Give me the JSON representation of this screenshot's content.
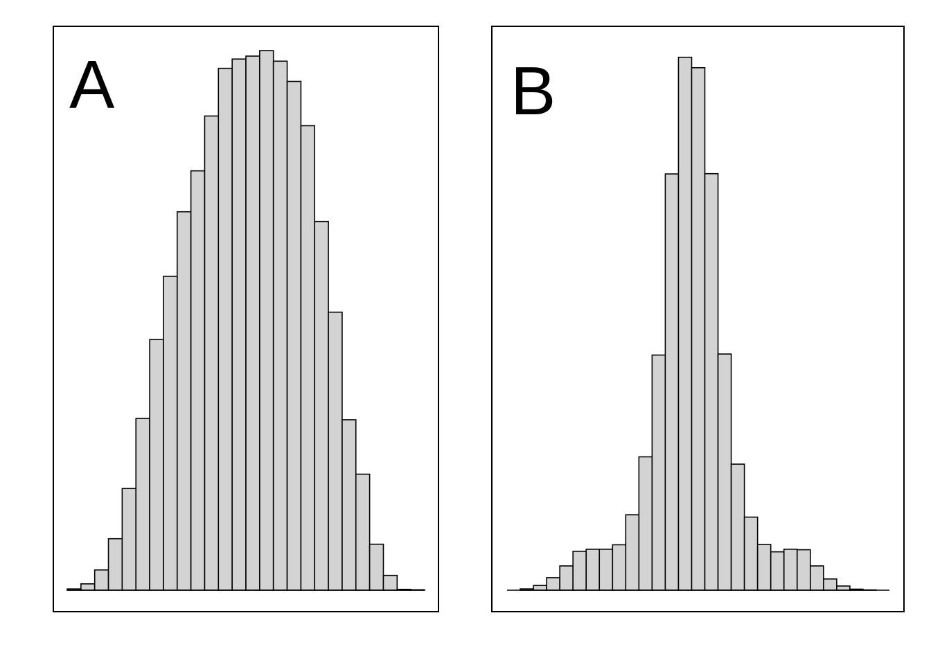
{
  "style": {
    "bar_fill": "#d3d3d3",
    "bar_stroke": "#000000",
    "background": "#ffffff"
  },
  "chart_data": [
    {
      "type": "bar",
      "panel_label": "A",
      "grid": false,
      "axes_shown": false,
      "values": [
        0.003,
        0.015,
        0.048,
        0.122,
        0.241,
        0.407,
        0.594,
        0.744,
        0.897,
        0.994,
        1.124,
        1.237,
        1.259,
        1.266,
        1.279,
        1.254,
        1.206,
        1.101,
        0.874,
        0.659,
        0.404,
        0.275,
        0.109,
        0.035,
        0.002,
        0.001
      ],
      "ylim": [
        0,
        1.33
      ]
    },
    {
      "type": "bar",
      "panel_label": "B",
      "grid": false,
      "axes_shown": false,
      "values": [
        0.0,
        0.005,
        0.018,
        0.048,
        0.093,
        0.149,
        0.157,
        0.157,
        0.174,
        0.289,
        0.511,
        0.901,
        1.595,
        2.042,
        2.002,
        1.596,
        0.905,
        0.483,
        0.28,
        0.175,
        0.147,
        0.157,
        0.155,
        0.093,
        0.043,
        0.016,
        0.004,
        0.001,
        0.0
      ],
      "ylim": [
        0,
        2.15
      ]
    }
  ]
}
